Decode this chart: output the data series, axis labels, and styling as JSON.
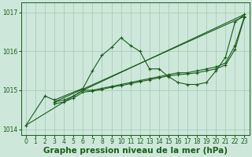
{
  "bg_color": "#cde8da",
  "grid_color": "#aaccbb",
  "line_color": "#1a5c1a",
  "xlabel": "Graphe pression niveau de la mer (hPa)",
  "xlabel_fontsize": 7.5,
  "xlim": [
    -0.5,
    23.5
  ],
  "ylim": [
    1013.85,
    1017.25
  ],
  "yticks": [
    1014,
    1015,
    1016,
    1017
  ],
  "xticks": [
    0,
    1,
    2,
    3,
    4,
    5,
    6,
    7,
    8,
    9,
    10,
    11,
    12,
    13,
    14,
    15,
    16,
    17,
    18,
    19,
    20,
    21,
    22,
    23
  ],
  "series": [
    {
      "x": [
        0,
        2,
        3,
        6,
        7,
        8,
        9,
        10,
        11,
        12,
        13,
        14,
        15,
        16,
        17,
        18,
        19,
        20,
        21,
        22,
        23
      ],
      "y": [
        1014.1,
        1014.85,
        1014.75,
        1015.05,
        1015.5,
        1015.9,
        1016.1,
        1016.35,
        1016.15,
        1016.0,
        1015.55,
        1015.55,
        1015.35,
        1015.2,
        1015.15,
        1015.15,
        1015.2,
        1015.5,
        1015.85,
        1016.75,
        1016.95
      ],
      "marker": true
    },
    {
      "x": [
        0,
        6,
        23
      ],
      "y": [
        1014.1,
        1015.0,
        1016.95
      ],
      "marker": false
    },
    {
      "x": [
        3,
        4,
        5,
        6,
        7,
        8,
        9,
        10,
        11,
        12,
        13,
        14,
        15,
        16,
        17,
        18,
        19,
        20,
        21,
        22,
        23
      ],
      "y": [
        1014.7,
        1014.75,
        1014.85,
        1015.0,
        1015.0,
        1015.05,
        1015.1,
        1015.15,
        1015.2,
        1015.25,
        1015.3,
        1015.35,
        1015.4,
        1015.45,
        1015.45,
        1015.5,
        1015.55,
        1015.6,
        1015.7,
        1016.15,
        1016.9
      ],
      "marker": true
    },
    {
      "x": [
        3,
        4,
        5,
        6,
        7,
        8,
        9,
        10,
        11,
        12,
        13,
        14,
        15,
        16,
        17,
        18,
        19,
        20,
        21,
        22,
        23
      ],
      "y": [
        1014.65,
        1014.7,
        1014.8,
        1014.95,
        1014.98,
        1015.02,
        1015.08,
        1015.12,
        1015.17,
        1015.22,
        1015.27,
        1015.32,
        1015.37,
        1015.4,
        1015.42,
        1015.45,
        1015.5,
        1015.55,
        1015.65,
        1016.05,
        1016.88
      ],
      "marker": true
    },
    {
      "x": [
        3,
        23
      ],
      "y": [
        1014.7,
        1016.9
      ],
      "marker": false
    }
  ]
}
